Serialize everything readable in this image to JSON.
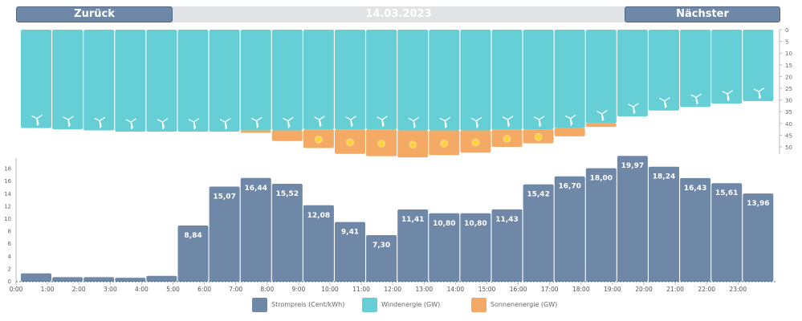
{
  "nav": {
    "prev_label": "Zurück",
    "next_label": "Nächster",
    "date": "14.03.2023"
  },
  "colors": {
    "price": "#6f88a8",
    "wind": "#66cfd6",
    "solar": "#f4a964",
    "sun": "#ffd51a"
  },
  "legend": [
    {
      "label": "Strompreis (Cent/kWh)",
      "color": "#6f88a8"
    },
    {
      "label": "Windenergie (GW)",
      "color": "#66cfd6"
    },
    {
      "label": "Sonnenenergie (GW)",
      "color": "#f4a964"
    }
  ],
  "chart_data": [
    {
      "type": "bar",
      "categories": [
        "0:00",
        "1:00",
        "2:00",
        "3:00",
        "4:00",
        "5:00",
        "6:00",
        "7:00",
        "8:00",
        "9:00",
        "10:00",
        "11:00",
        "12:00",
        "13:00",
        "14:00",
        "15:00",
        "16:00",
        "17:00",
        "18:00",
        "19:00",
        "20:00",
        "21:00",
        "22:00",
        "23:00"
      ],
      "series": [
        {
          "name": "Windenergie (GW)",
          "values": [
            42,
            42.5,
            43,
            43.5,
            43.5,
            43.5,
            43.5,
            43,
            43,
            42.5,
            42.5,
            42.5,
            43,
            43,
            43,
            42.5,
            42.5,
            42,
            40,
            37,
            34.5,
            33,
            31.5,
            30.5
          ]
        },
        {
          "name": "Sonnenenergie (GW)",
          "values": [
            0,
            0,
            0,
            0,
            0,
            0,
            0,
            1,
            4.5,
            8,
            10.5,
            11.5,
            11.5,
            10.5,
            9.5,
            7.5,
            6,
            3.5,
            1.5,
            0,
            0,
            0,
            0,
            0
          ]
        }
      ],
      "y_ticks": [
        "0",
        "5",
        "10",
        "15",
        "20",
        "25",
        "30",
        "35",
        "40",
        "45",
        "50"
      ],
      "ylim": [
        0,
        52
      ],
      "stacked": true,
      "inverted": true
    },
    {
      "type": "bar",
      "categories": [
        "0:00",
        "1:00",
        "2:00",
        "3:00",
        "4:00",
        "5:00",
        "6:00",
        "7:00",
        "8:00",
        "9:00",
        "10:00",
        "11:00",
        "12:00",
        "13:00",
        "14:00",
        "15:00",
        "16:00",
        "17:00",
        "18:00",
        "19:00",
        "20:00",
        "21:00",
        "22:00",
        "23:00"
      ],
      "series": [
        {
          "name": "Strompreis (Cent/kWh)",
          "values": [
            1.2,
            0.6,
            0.6,
            0.5,
            0.8,
            8.84,
            15.07,
            16.44,
            15.52,
            12.08,
            9.41,
            7.3,
            11.41,
            10.8,
            10.8,
            11.43,
            15.42,
            16.7,
            18.0,
            19.97,
            18.24,
            16.43,
            15.61,
            13.96
          ]
        }
      ],
      "labels": [
        "",
        "",
        "",
        "",
        "",
        "8,84",
        "15,07",
        "16,44",
        "15,52",
        "12,08",
        "9,41",
        "7,30",
        "11,41",
        "10,80",
        "10,80",
        "11,43",
        "15,42",
        "16,70",
        "18,00",
        "19,97",
        "18,24",
        "16,43",
        "15,61",
        "13,96"
      ],
      "y_ticks": [
        "0",
        "2",
        "4",
        "6",
        "8",
        "10",
        "12",
        "14",
        "16",
        "18"
      ],
      "ylim": [
        0,
        19.97
      ]
    }
  ]
}
